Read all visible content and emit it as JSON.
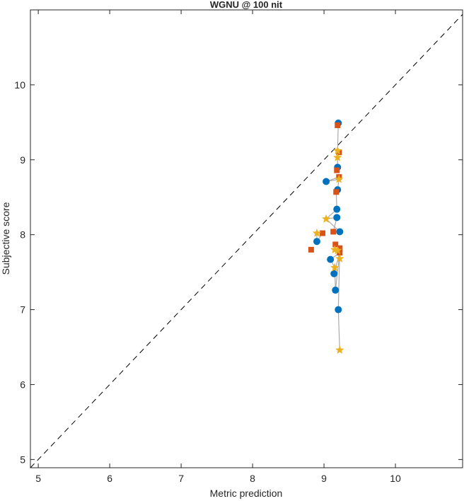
{
  "chart_data": {
    "type": "scatter",
    "title": "WGNU @ 100 nit",
    "xlabel": "Metric prediction",
    "ylabel": "Subjective score",
    "xlim": [
      4.89,
      10.94
    ],
    "ylim": [
      4.89,
      11.0
    ],
    "xticks": [
      5,
      6,
      7,
      8,
      9,
      10
    ],
    "yticks": [
      5,
      6,
      7,
      8,
      9,
      10
    ],
    "grid": false,
    "reference_line": "y = x, dashed black",
    "series": [
      {
        "marker": "circle",
        "color": "#0072BD",
        "x": [
          9.2,
          9.19,
          9.19,
          9.18,
          9.18,
          9.22,
          9.03,
          8.9,
          9.09,
          9.14,
          9.16,
          9.2
        ],
        "y": [
          9.49,
          8.9,
          8.6,
          8.34,
          8.23,
          8.04,
          8.71,
          7.91,
          7.67,
          7.48,
          7.26,
          7.0
        ]
      },
      {
        "marker": "square",
        "color": "#D95319",
        "x": [
          9.19,
          9.21,
          9.18,
          9.21,
          9.17,
          9.13,
          8.98,
          8.82,
          9.16,
          9.22,
          9.22
        ],
        "y": [
          9.46,
          9.1,
          8.86,
          8.77,
          8.57,
          8.04,
          8.02,
          7.8,
          7.87,
          7.82,
          7.76
        ]
      },
      {
        "marker": "star",
        "color": "#EDB120",
        "x": [
          9.19,
          9.19,
          9.21,
          9.03,
          8.9,
          9.15,
          9.19,
          9.22,
          9.15,
          9.22
        ],
        "y": [
          9.12,
          9.03,
          8.74,
          8.21,
          8.02,
          7.8,
          7.79,
          7.68,
          7.56,
          6.46
        ]
      }
    ]
  }
}
